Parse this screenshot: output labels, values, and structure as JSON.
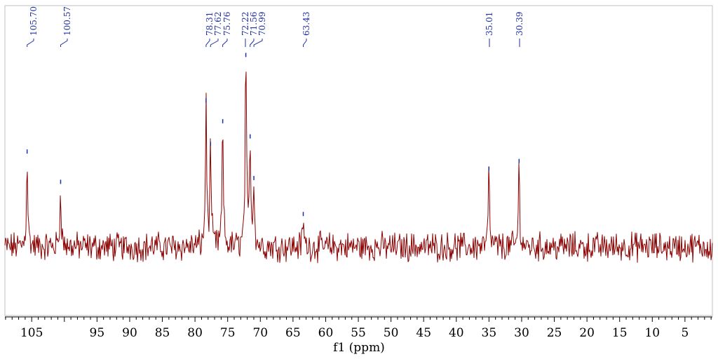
{
  "chart_data": {
    "type": "line",
    "title": "",
    "xlabel": "f1 (ppm)",
    "ylabel": "",
    "xlim": [
      109.1,
      0.8
    ],
    "x_reversed": true,
    "y_axis_visible": false,
    "grid": false,
    "legend": "none",
    "x_tick_labels": [
      "105",
      "95",
      "90",
      "85",
      "80",
      "75",
      "70",
      "65",
      "60",
      "55",
      "50",
      "45",
      "40",
      "35",
      "30",
      "25",
      "20",
      "15",
      "10",
      "5"
    ],
    "series": [
      {
        "line_color": "#8b0000",
        "baseline": 0,
        "noise_level": 0.06,
        "peaks": [
          {
            "x": 105.7,
            "height": 0.47
          },
          {
            "x": 100.57,
            "height": 0.31
          },
          {
            "x": 78.31,
            "height": 0.74
          },
          {
            "x": 77.62,
            "height": 0.51
          },
          {
            "x": 75.76,
            "height": 0.63
          },
          {
            "x": 72.22,
            "height": 0.98
          },
          {
            "x": 71.56,
            "height": 0.55
          },
          {
            "x": 70.99,
            "height": 0.33
          },
          {
            "x": 63.43,
            "height": 0.14
          },
          {
            "x": 35.01,
            "height": 0.38
          },
          {
            "x": 30.39,
            "height": 0.42
          }
        ]
      }
    ],
    "peak_labels": [
      "105.70",
      "100.57",
      "78.31",
      "77.62",
      "75.76",
      "72.22",
      "71.56",
      "70.99",
      "63.43",
      "35.01",
      "30.39"
    ],
    "peak_label_color": "#1f2fa6"
  }
}
